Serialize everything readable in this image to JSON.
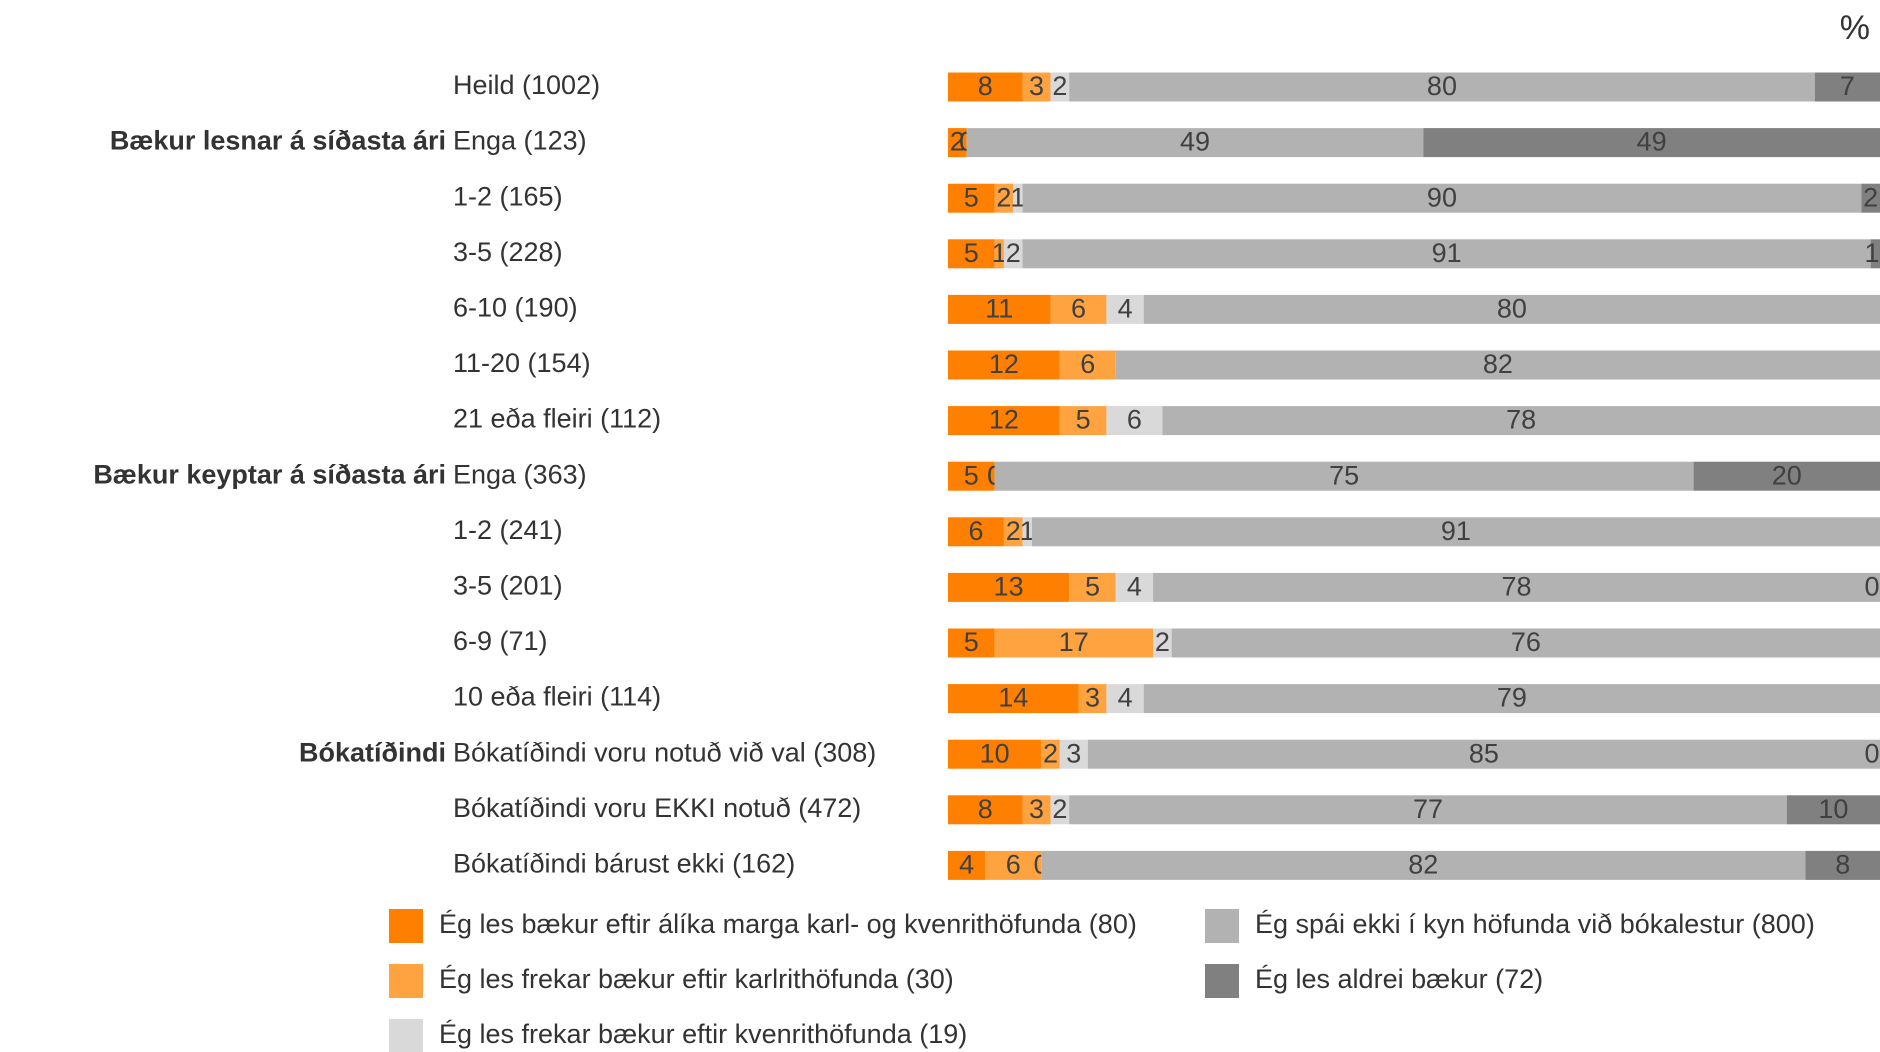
{
  "chart_data": {
    "type": "stacked_bar_horizontal",
    "unit": "%",
    "categories": [
      "Heild (1002)",
      "Enga (123)",
      "1-2 (165)",
      "3-5 (228)",
      "6-10 (190)",
      "11-20 (154)",
      "21 eða fleiri (112)",
      "Enga (363)",
      "1-2 (241)",
      "3-5 (201)",
      "6-9 (71)",
      "10 eða fleiri (114)",
      "Bókatíðindi voru notuð við val (308)",
      "Bókatíðindi voru EKKI notuð (472)",
      "Bókatíðindi bárust ekki (162)"
    ],
    "group_labels": [
      null,
      "Bækur lesnar á síðasta ári",
      null,
      null,
      null,
      null,
      null,
      "Bækur keyptar á síðasta ári",
      null,
      null,
      null,
      null,
      "Bókatíðindi",
      null,
      null
    ],
    "xlim": [
      0,
      100
    ],
    "series": [
      {
        "name": "Ég les bækur eftir álíka marga karl- og kvenrithöfunda (80)",
        "color": "#ff8000",
        "values": [
          8,
          2,
          5,
          5,
          11,
          12,
          12,
          5,
          6,
          13,
          5,
          14,
          10,
          8,
          4
        ]
      },
      {
        "name": "Ég les frekar bækur eftir karlrithöfunda (30)",
        "color": "#ffa340",
        "values": [
          3,
          0,
          2,
          1,
          6,
          6,
          5,
          0,
          2,
          5,
          17,
          3,
          2,
          3,
          6
        ]
      },
      {
        "name": "Ég les frekar bækur eftir kvenrithöfunda (19)",
        "color": "#d9d9d9",
        "values": [
          2,
          0,
          1,
          2,
          4,
          null,
          6,
          0,
          1,
          4,
          2,
          4,
          3,
          2,
          0
        ]
      },
      {
        "name": "Ég spái ekki í kyn höfunda við bókalestur (800)",
        "color": "#b2b2b2",
        "values": [
          80,
          49,
          90,
          91,
          80,
          82,
          78,
          75,
          91,
          78,
          76,
          79,
          85,
          77,
          82
        ]
      },
      {
        "name": "Ég les aldrei bækur (72)",
        "color": "#808080",
        "values": [
          7,
          49,
          2,
          1,
          null,
          null,
          null,
          20,
          null,
          0,
          null,
          null,
          0,
          10,
          8
        ]
      }
    ]
  }
}
